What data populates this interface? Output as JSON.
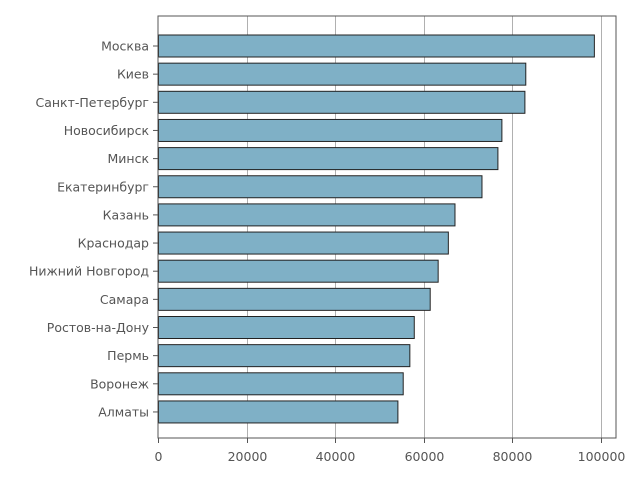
{
  "chart_data": {
    "type": "bar",
    "orientation": "horizontal",
    "title": "",
    "xlabel": "",
    "ylabel": "",
    "categories": [
      "Москва",
      "Киев",
      "Санкт-Петербург",
      "Новосибирск",
      "Минск",
      "Екатеринбург",
      "Казань",
      "Краснодар",
      "Нижний Новгород",
      "Самара",
      "Ростов-на-Дону",
      "Пермь",
      "Воронеж",
      "Алматы"
    ],
    "values": [
      98500,
      83000,
      82800,
      77600,
      76700,
      73100,
      67000,
      65500,
      63200,
      61400,
      57800,
      56800,
      55300,
      54100
    ],
    "xlim": [
      0,
      103500
    ],
    "xticks": [
      0,
      20000,
      40000,
      60000,
      80000,
      100000
    ],
    "xtick_labels": [
      "0",
      "20000",
      "40000",
      "60000",
      "80000",
      "100000"
    ],
    "grid": "vertical",
    "bar_color": "#7fb0c6",
    "bar_edge_color": "#222222",
    "text_color": "#555555",
    "grid_color": "#b0b0b0"
  }
}
